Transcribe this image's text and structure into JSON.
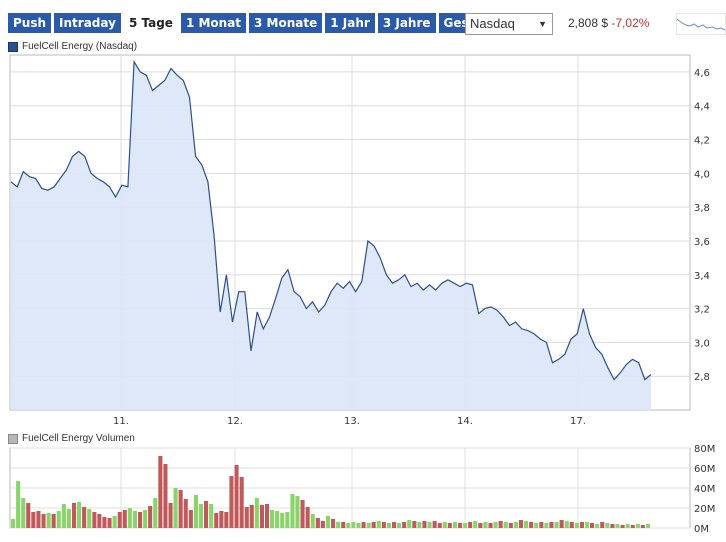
{
  "tabs": [
    "Push",
    "Intraday",
    "5 Tage",
    "1 Monat",
    "3 Monate",
    "1 Jahr",
    "3 Jahre",
    "Gesamt"
  ],
  "active_tab": "5 Tage",
  "exchange": {
    "selected": "Nasdaq"
  },
  "quote": {
    "price": "2,808 $",
    "change": "-7,02%"
  },
  "colors": {
    "accent": "#2a5aa8",
    "price_line": "#2b4f8f",
    "fill": "#dbe6f8",
    "vol_up": "#8bd36b",
    "vol_down": "#c05a5a",
    "negative": "#c8332f"
  },
  "chart_data": [
    {
      "type": "line",
      "legend": "FuelCell Energy (Nasdaq)",
      "x_ticks": [
        "11.",
        "12.",
        "13.",
        "14.",
        "17."
      ],
      "y_ticks": [
        "2,8",
        "3,0",
        "3,2",
        "3,4",
        "3,6",
        "3,8",
        "4,0",
        "4,2",
        "4,4",
        "4,6"
      ],
      "ylim": [
        2.6,
        4.7
      ],
      "grid": true,
      "y": [
        3.95,
        3.92,
        4.01,
        3.98,
        3.97,
        3.91,
        3.9,
        3.92,
        3.97,
        4.02,
        4.1,
        4.13,
        4.1,
        4.0,
        3.97,
        3.95,
        3.92,
        3.86,
        3.93,
        3.92,
        4.66,
        4.6,
        4.58,
        4.49,
        4.52,
        4.55,
        4.62,
        4.58,
        4.55,
        4.45,
        4.1,
        4.05,
        3.95,
        3.63,
        3.18,
        3.4,
        3.12,
        3.3,
        3.3,
        2.95,
        3.18,
        3.08,
        3.15,
        3.26,
        3.38,
        3.43,
        3.3,
        3.27,
        3.2,
        3.24,
        3.18,
        3.22,
        3.3,
        3.35,
        3.32,
        3.36,
        3.3,
        3.36,
        3.6,
        3.57,
        3.5,
        3.4,
        3.35,
        3.37,
        3.4,
        3.33,
        3.35,
        3.31,
        3.34,
        3.31,
        3.35,
        3.37,
        3.35,
        3.33,
        3.35,
        3.34,
        3.17,
        3.2,
        3.21,
        3.19,
        3.15,
        3.1,
        3.12,
        3.08,
        3.07,
        3.05,
        3.02,
        3.0,
        2.88,
        2.9,
        2.93,
        3.02,
        3.05,
        3.2,
        3.05,
        2.97,
        2.93,
        2.85,
        2.78,
        2.82,
        2.87,
        2.9,
        2.88,
        2.78,
        2.81
      ]
    },
    {
      "type": "bar",
      "legend": "FuelCell Energy Volumen",
      "y_ticks": [
        "0M",
        "20M",
        "40M",
        "60M",
        "80M"
      ],
      "ylim": [
        0,
        80
      ],
      "values": [
        9,
        47,
        30,
        25,
        16,
        17,
        14,
        15,
        14,
        17,
        24,
        19,
        25,
        26,
        21,
        19,
        16,
        14,
        11,
        10,
        12,
        16,
        18,
        20,
        17,
        16,
        18,
        22,
        30,
        72,
        64,
        25,
        40,
        38,
        29,
        18,
        33,
        24,
        27,
        24,
        15,
        17,
        16,
        52,
        63,
        51,
        21,
        23,
        30,
        23,
        24,
        18,
        17,
        15,
        16,
        34,
        32,
        28,
        21,
        14,
        10,
        7,
        12,
        9,
        6,
        6,
        5,
        6,
        5,
        6,
        5,
        6,
        7,
        6,
        5,
        6,
        5,
        6,
        8,
        7,
        6,
        7,
        6,
        7,
        5,
        6,
        5,
        6,
        5,
        5,
        6,
        7,
        5,
        6,
        5,
        6,
        7,
        6,
        5,
        6,
        8,
        7,
        6,
        5,
        6,
        5,
        6,
        6,
        8,
        7,
        6,
        5,
        6,
        6,
        5,
        4,
        6,
        5,
        4,
        4,
        3,
        4,
        3,
        4,
        3,
        4
      ],
      "up": [
        true,
        true,
        true,
        false,
        false,
        false,
        false,
        true,
        false,
        true,
        true,
        true,
        false,
        true,
        false,
        true,
        false,
        false,
        false,
        false,
        true,
        false,
        false,
        true,
        true,
        false,
        true,
        false,
        true,
        false,
        false,
        false,
        true,
        false,
        false,
        false,
        true,
        true,
        false,
        true,
        false,
        false,
        false,
        false,
        false,
        false,
        false,
        false,
        true,
        false,
        false,
        true,
        true,
        true,
        true,
        true,
        true,
        false,
        false,
        true,
        false,
        false,
        true,
        false,
        true,
        false,
        true,
        true,
        true,
        false,
        true,
        false,
        true,
        false,
        true,
        false,
        true,
        false,
        true,
        false,
        true,
        false,
        true,
        false,
        false,
        true,
        false,
        true,
        false,
        true,
        false,
        true,
        false,
        true,
        false,
        true,
        false,
        true,
        false,
        true,
        false,
        true,
        false,
        true,
        false,
        true,
        false,
        true,
        false,
        true,
        false,
        true,
        false,
        true,
        false,
        true,
        false,
        true,
        false,
        true,
        false,
        true,
        false,
        true,
        false,
        true
      ]
    }
  ]
}
